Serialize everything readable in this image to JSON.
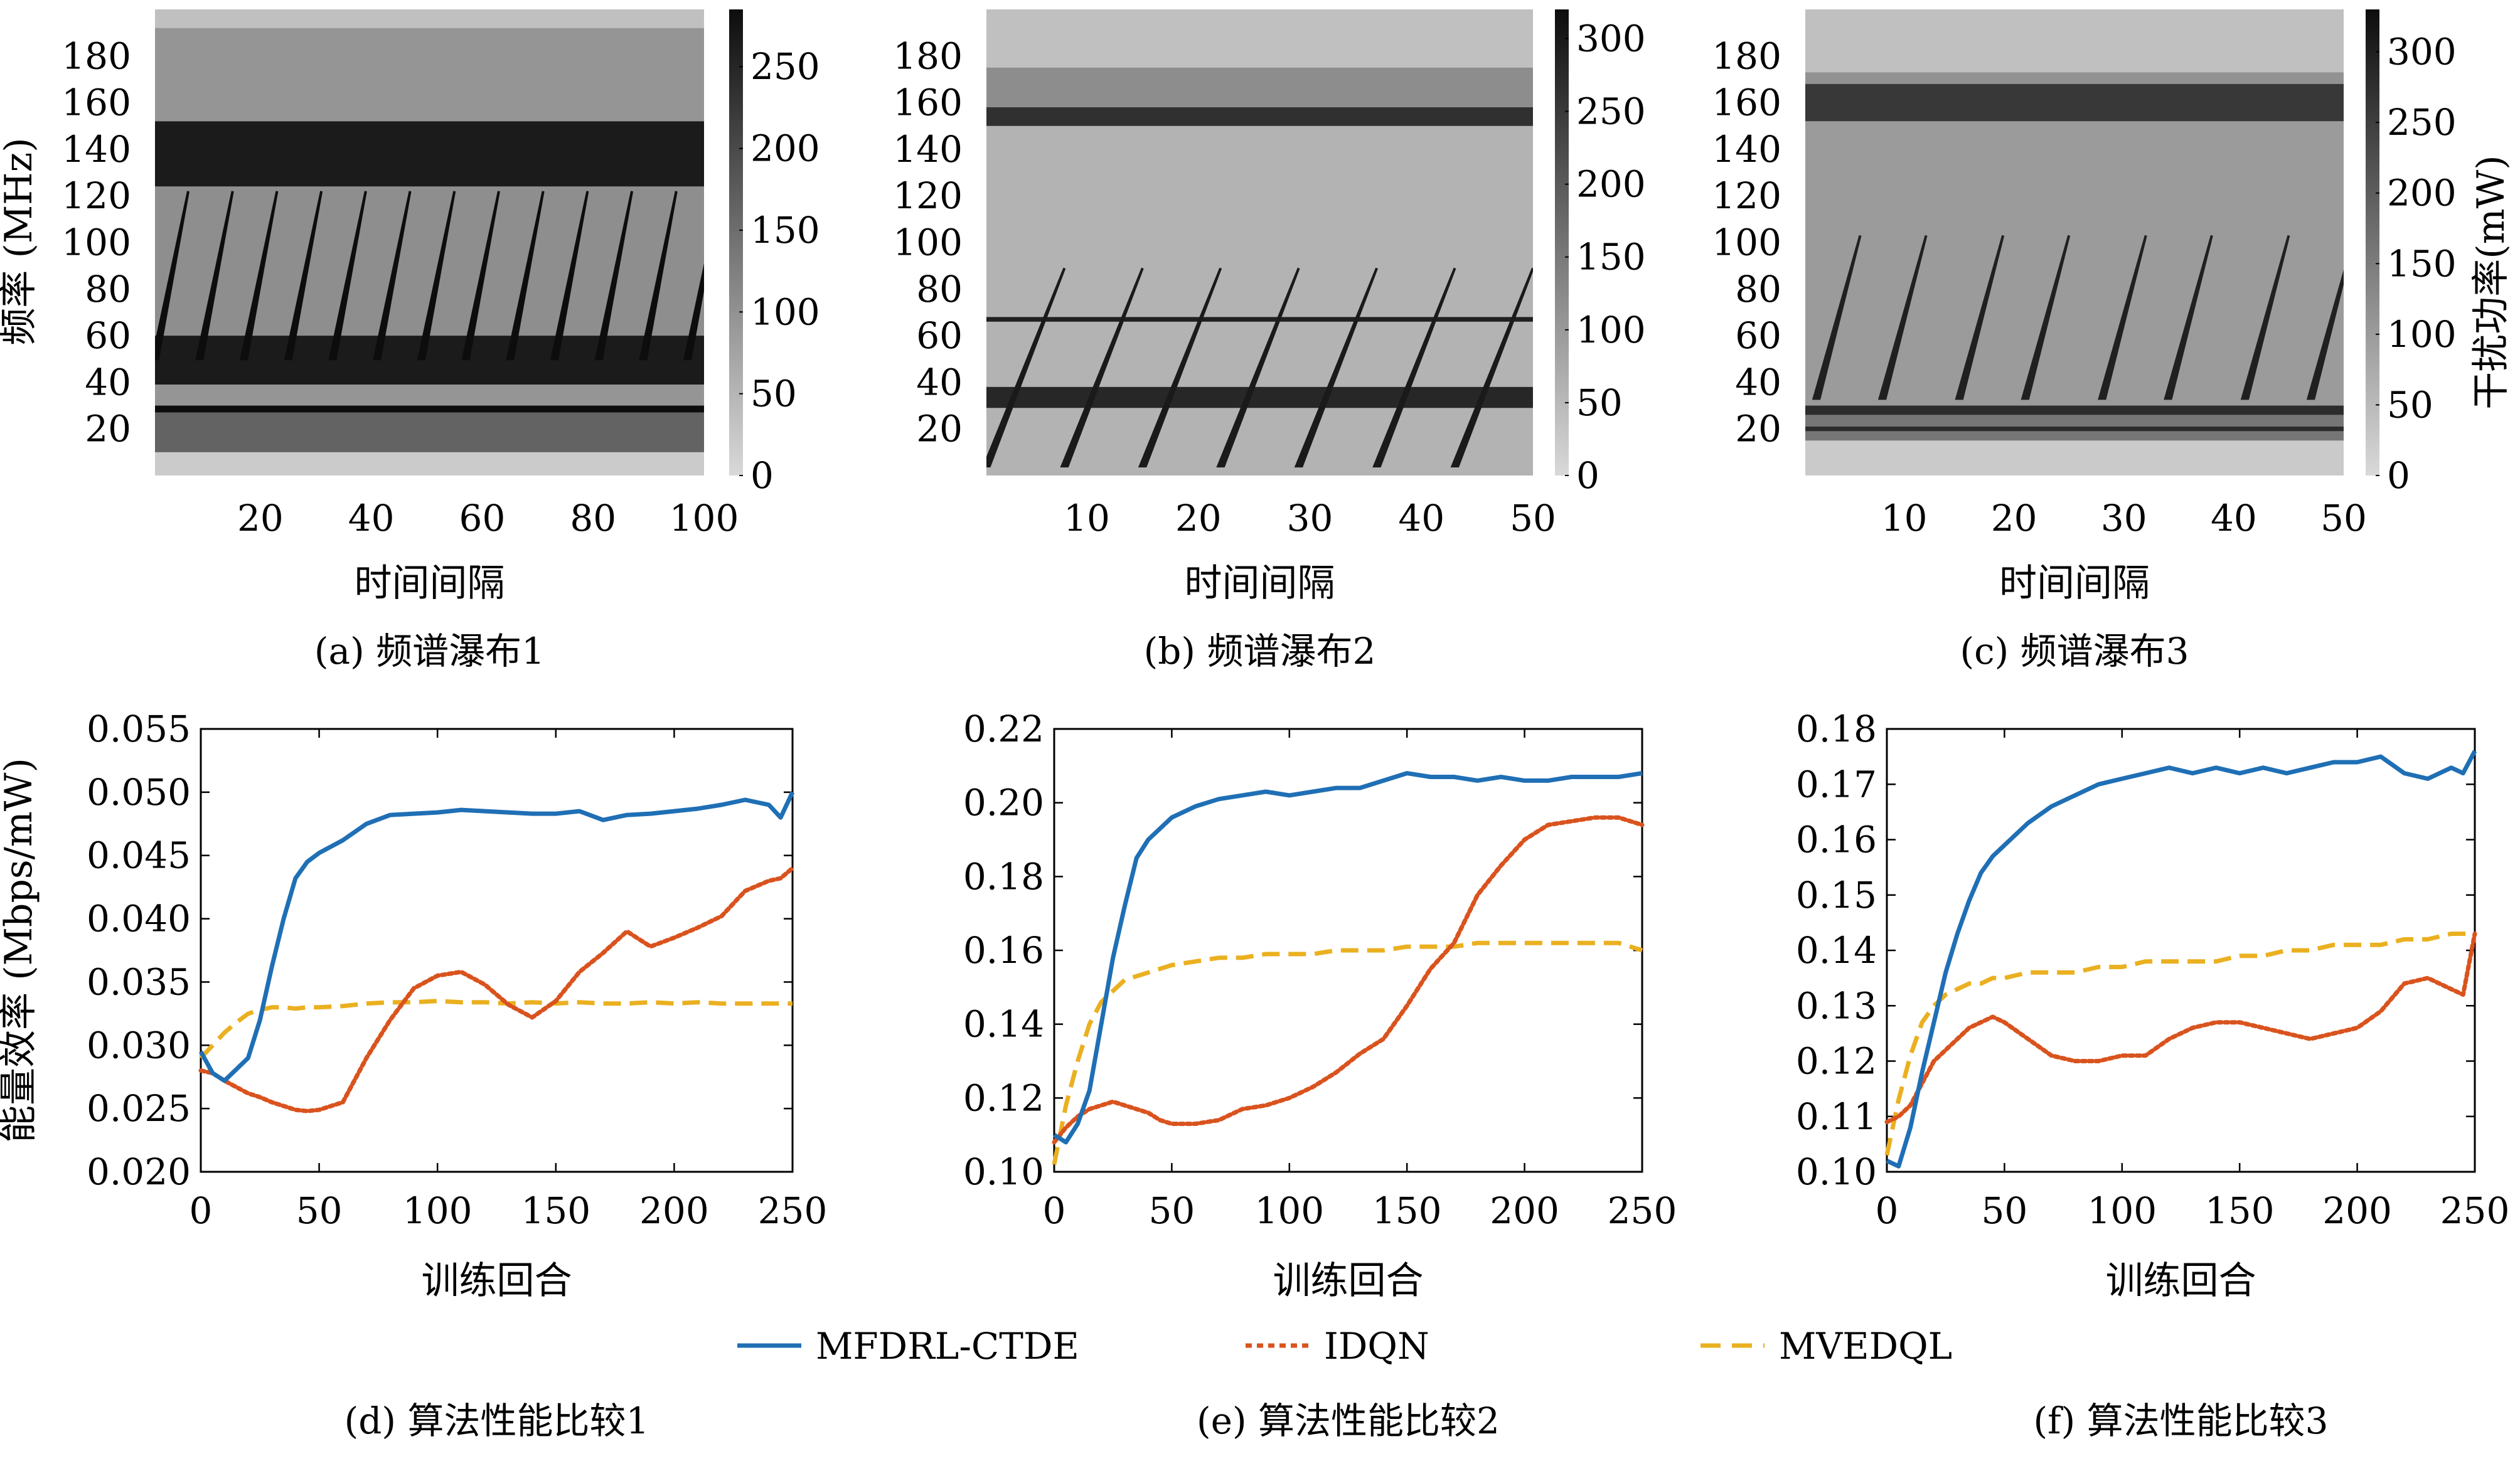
{
  "spectrum": {
    "ylabel": "频率 (MHz)",
    "xlabel": "时间间隔",
    "colorbar_label": "干扰功率(mW)",
    "yticks": [
      20,
      40,
      60,
      80,
      100,
      120,
      140,
      160,
      180
    ]
  },
  "performance": {
    "ylabel": "能量效率 (Mbps/mW)",
    "xlabel": "训练回合",
    "xticks": [
      0,
      50,
      100,
      150,
      200,
      250
    ],
    "colors": {
      "MFDRL-CTDE": "#1f6fb5",
      "IDQN": "#d9531e",
      "MVEDQL": "#eab020"
    }
  },
  "legend": [
    {
      "name": "MFDRL-CTDE",
      "color": "#1f6fb5",
      "dash": "solid"
    },
    {
      "name": "IDQN",
      "color": "#d9531e",
      "dash": "dotted"
    },
    {
      "name": "MVEDQL",
      "color": "#eab020",
      "dash": "dashed"
    }
  ],
  "captions": [
    "(a) 频谱瀑布1",
    "(b) 频谱瀑布2",
    "(c) 频谱瀑布3",
    "(d) 算法性能比较1",
    "(e) 算法性能比较2",
    "(f) 算法性能比较3"
  ],
  "chart_data": [
    {
      "id": "a",
      "type": "heatmap",
      "title": "(a) 频谱瀑布1",
      "xlabel": "时间间隔",
      "ylabel": "频率 (MHz)",
      "xlim": [
        1,
        100
      ],
      "ylim": [
        0,
        200
      ],
      "xticks": [
        20,
        40,
        60,
        80,
        100
      ],
      "colorbar": {
        "min": 0,
        "max": 285,
        "ticks": [
          0,
          50,
          100,
          150,
          200,
          250
        ]
      },
      "background": 20,
      "bands": [
        {
          "from": 192,
          "to": 200,
          "value": 35
        },
        {
          "from": 152,
          "to": 192,
          "value": 95
        },
        {
          "from": 124,
          "to": 152,
          "value": 265
        },
        {
          "from": 60,
          "to": 124,
          "value": 105
        },
        {
          "from": 39,
          "to": 60,
          "value": 265
        },
        {
          "from": 30,
          "to": 39,
          "value": 95
        },
        {
          "from": 27,
          "to": 30,
          "value": 285
        },
        {
          "from": 10,
          "to": 27,
          "value": 165
        }
      ],
      "sweeps": {
        "starts": [
          1,
          9,
          17,
          25,
          33,
          41,
          49,
          57,
          65,
          73,
          81,
          89,
          97
        ],
        "f_low": 50,
        "f_high": 122,
        "length": 6,
        "value": 285
      }
    },
    {
      "id": "b",
      "type": "heatmap",
      "title": "(b) 频谱瀑布2",
      "xlabel": "时间间隔",
      "ylabel": "",
      "xlim": [
        1,
        50
      ],
      "ylim": [
        0,
        200
      ],
      "xticks": [
        10,
        20,
        30,
        40,
        50
      ],
      "colorbar": {
        "min": 0,
        "max": 320,
        "ticks": [
          0,
          50,
          100,
          150,
          200,
          250,
          300
        ]
      },
      "background": 60,
      "bands": [
        {
          "from": 175,
          "to": 200,
          "value": 40
        },
        {
          "from": 152,
          "to": 175,
          "value": 120
        },
        {
          "from": 150,
          "to": 158,
          "value": 265
        },
        {
          "from": 66,
          "to": 68,
          "value": 290
        },
        {
          "from": 29,
          "to": 38,
          "value": 280
        }
      ],
      "sweeps": {
        "starts": [
          1,
          8,
          15,
          22,
          29,
          36,
          43
        ],
        "f_low": 4,
        "f_high": 89,
        "length": 7,
        "value": 300
      }
    },
    {
      "id": "c",
      "type": "heatmap",
      "title": "(c) 频谱瀑布3",
      "xlabel": "时间间隔",
      "ylabel": "",
      "xlim": [
        1,
        50
      ],
      "ylim": [
        0,
        200
      ],
      "xticks": [
        10,
        20,
        30,
        40,
        50
      ],
      "colorbar": {
        "min": 0,
        "max": 330,
        "ticks": [
          0,
          50,
          100,
          150,
          200,
          250,
          300
        ]
      },
      "background": 25,
      "bands": [
        {
          "from": 173,
          "to": 200,
          "value": 40
        },
        {
          "from": 152,
          "to": 173,
          "value": 115
        },
        {
          "from": 152,
          "to": 168,
          "value": 260
        },
        {
          "from": 30,
          "to": 152,
          "value": 100
        },
        {
          "from": 26,
          "to": 30,
          "value": 280
        },
        {
          "from": 21,
          "to": 26,
          "value": 160
        },
        {
          "from": 19,
          "to": 21,
          "value": 280
        },
        {
          "from": 15,
          "to": 19,
          "value": 160
        }
      ],
      "sweeps": {
        "starts": [
          2,
          8,
          15,
          21,
          28,
          34,
          41,
          47
        ],
        "f_low": 33,
        "f_high": 103,
        "length": 4,
        "value": 300
      }
    },
    {
      "id": "d",
      "type": "line",
      "title": "(d) 算法性能比较1",
      "xlabel": "训练回合",
      "ylabel": "能量效率 (Mbps/mW)",
      "xlim": [
        0,
        250
      ],
      "ylim": [
        0.02,
        0.055
      ],
      "yticks": [
        "0.020",
        "0.025",
        "0.030",
        "0.035",
        "0.040",
        "0.045",
        "0.050",
        "0.055"
      ],
      "x": [
        0,
        5,
        10,
        15,
        20,
        25,
        30,
        35,
        40,
        45,
        50,
        60,
        70,
        80,
        90,
        100,
        110,
        120,
        130,
        140,
        150,
        160,
        170,
        180,
        190,
        200,
        210,
        220,
        230,
        240,
        245,
        250
      ],
      "series": [
        {
          "name": "MFDRL-CTDE",
          "values": [
            0.0295,
            0.0278,
            0.0272,
            0.0281,
            0.029,
            0.032,
            0.0362,
            0.04,
            0.0432,
            0.0445,
            0.0452,
            0.0462,
            0.0475,
            0.0482,
            0.0483,
            0.0484,
            0.0486,
            0.0485,
            0.0484,
            0.0483,
            0.0483,
            0.0485,
            0.0478,
            0.0482,
            0.0483,
            0.0485,
            0.0487,
            0.049,
            0.0494,
            0.049,
            0.048,
            0.05
          ]
        },
        {
          "name": "IDQN",
          "values": [
            0.028,
            0.0278,
            0.0272,
            0.0267,
            0.0262,
            0.0259,
            0.0255,
            0.0252,
            0.0249,
            0.0248,
            0.0249,
            0.0255,
            0.029,
            0.032,
            0.0345,
            0.0355,
            0.0358,
            0.0348,
            0.0332,
            0.0322,
            0.0335,
            0.0358,
            0.0373,
            0.039,
            0.0378,
            0.0385,
            0.0393,
            0.0402,
            0.0422,
            0.043,
            0.0432,
            0.044
          ]
        },
        {
          "name": "MVEDQL",
          "values": [
            0.029,
            0.03,
            0.031,
            0.0318,
            0.0325,
            0.0328,
            0.033,
            0.033,
            0.0329,
            0.033,
            0.033,
            0.0331,
            0.0333,
            0.0334,
            0.0334,
            0.0335,
            0.0334,
            0.0334,
            0.0333,
            0.0334,
            0.0333,
            0.0334,
            0.0333,
            0.0333,
            0.0334,
            0.0333,
            0.0334,
            0.0333,
            0.0333,
            0.0333,
            0.0333,
            0.0333
          ]
        }
      ]
    },
    {
      "id": "e",
      "type": "line",
      "title": "(e) 算法性能比较2",
      "xlabel": "训练回合",
      "ylabel": "",
      "xlim": [
        0,
        250
      ],
      "ylim": [
        0.1,
        0.22
      ],
      "yticks": [
        "0.10",
        "0.12",
        "0.14",
        "0.16",
        "0.18",
        "0.20",
        "0.22"
      ],
      "x": [
        0,
        5,
        10,
        15,
        20,
        25,
        30,
        35,
        40,
        45,
        50,
        60,
        70,
        80,
        90,
        100,
        110,
        120,
        130,
        140,
        150,
        160,
        170,
        180,
        190,
        200,
        210,
        220,
        230,
        240,
        250
      ],
      "series": [
        {
          "name": "MFDRL-CTDE",
          "values": [
            0.11,
            0.108,
            0.113,
            0.122,
            0.14,
            0.158,
            0.172,
            0.185,
            0.19,
            0.193,
            0.196,
            0.199,
            0.201,
            0.202,
            0.203,
            0.202,
            0.203,
            0.204,
            0.204,
            0.206,
            0.208,
            0.207,
            0.207,
            0.206,
            0.207,
            0.206,
            0.206,
            0.207,
            0.207,
            0.207,
            0.208
          ]
        },
        {
          "name": "IDQN",
          "values": [
            0.108,
            0.112,
            0.115,
            0.117,
            0.118,
            0.119,
            0.118,
            0.117,
            0.116,
            0.114,
            0.113,
            0.113,
            0.114,
            0.117,
            0.118,
            0.12,
            0.123,
            0.127,
            0.132,
            0.136,
            0.145,
            0.155,
            0.162,
            0.175,
            0.183,
            0.19,
            0.194,
            0.195,
            0.196,
            0.196,
            0.194
          ]
        },
        {
          "name": "MVEDQL",
          "values": [
            0.102,
            0.118,
            0.13,
            0.14,
            0.146,
            0.149,
            0.152,
            0.153,
            0.154,
            0.155,
            0.156,
            0.157,
            0.158,
            0.158,
            0.159,
            0.159,
            0.159,
            0.16,
            0.16,
            0.16,
            0.161,
            0.161,
            0.161,
            0.162,
            0.162,
            0.162,
            0.162,
            0.162,
            0.162,
            0.162,
            0.16
          ]
        }
      ]
    },
    {
      "id": "f",
      "type": "line",
      "title": "(f) 算法性能比较3",
      "xlabel": "训练回合",
      "ylabel": "",
      "xlim": [
        0,
        250
      ],
      "ylim": [
        0.1,
        0.18
      ],
      "yticks": [
        "0.10",
        "0.11",
        "0.12",
        "0.13",
        "0.14",
        "0.15",
        "0.16",
        "0.17",
        "0.18"
      ],
      "x": [
        0,
        5,
        10,
        15,
        20,
        25,
        30,
        35,
        40,
        45,
        50,
        60,
        70,
        80,
        90,
        100,
        110,
        120,
        130,
        140,
        150,
        160,
        170,
        180,
        190,
        200,
        210,
        220,
        230,
        240,
        245,
        250
      ],
      "series": [
        {
          "name": "MFDRL-CTDE",
          "values": [
            0.102,
            0.101,
            0.108,
            0.118,
            0.127,
            0.136,
            0.143,
            0.149,
            0.154,
            0.157,
            0.159,
            0.163,
            0.166,
            0.168,
            0.17,
            0.171,
            0.172,
            0.173,
            0.172,
            0.173,
            0.172,
            0.173,
            0.172,
            0.173,
            0.174,
            0.174,
            0.175,
            0.172,
            0.171,
            0.173,
            0.172,
            0.176
          ]
        },
        {
          "name": "IDQN",
          "values": [
            0.109,
            0.11,
            0.112,
            0.116,
            0.12,
            0.122,
            0.124,
            0.126,
            0.127,
            0.128,
            0.127,
            0.124,
            0.121,
            0.12,
            0.12,
            0.121,
            0.121,
            0.124,
            0.126,
            0.127,
            0.127,
            0.126,
            0.125,
            0.124,
            0.125,
            0.126,
            0.129,
            0.134,
            0.135,
            0.133,
            0.132,
            0.143
          ]
        },
        {
          "name": "MVEDQL",
          "values": [
            0.103,
            0.113,
            0.121,
            0.127,
            0.13,
            0.132,
            0.133,
            0.134,
            0.134,
            0.135,
            0.135,
            0.136,
            0.136,
            0.136,
            0.137,
            0.137,
            0.138,
            0.138,
            0.138,
            0.138,
            0.139,
            0.139,
            0.14,
            0.14,
            0.141,
            0.141,
            0.141,
            0.142,
            0.142,
            0.143,
            0.143,
            0.143
          ]
        }
      ]
    }
  ]
}
